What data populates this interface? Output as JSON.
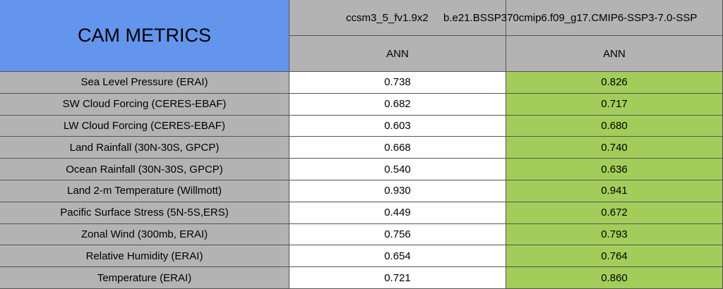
{
  "table": {
    "title": "CAM METRICS",
    "columns": [
      "ccsm3_5_fv1.9x2",
      "b.e21.BSSP370cmip6.f09_g17.CMIP6-SSP3-7.0-SSP"
    ],
    "subheaders": [
      "ANN",
      "ANN"
    ],
    "rows": [
      {
        "label": "Sea Level Pressure (ERAI)",
        "values": [
          "0.738",
          "0.826"
        ]
      },
      {
        "label": "SW Cloud Forcing (CERES-EBAF)",
        "values": [
          "0.682",
          "0.717"
        ]
      },
      {
        "label": "LW Cloud Forcing (CERES-EBAF)",
        "values": [
          "0.603",
          "0.680"
        ]
      },
      {
        "label": "Land Rainfall (30N-30S, GPCP)",
        "values": [
          "0.668",
          "0.740"
        ]
      },
      {
        "label": "Ocean Rainfall (30N-30S, GPCP)",
        "values": [
          "0.540",
          "0.636"
        ]
      },
      {
        "label": "Land 2-m Temperature (Willmott)",
        "values": [
          "0.930",
          "0.941"
        ]
      },
      {
        "label": "Pacific Surface Stress (5N-5S,ERS)",
        "values": [
          "0.449",
          "0.672"
        ]
      },
      {
        "label": "Zonal Wind (300mb, ERAI)",
        "values": [
          "0.756",
          "0.793"
        ]
      },
      {
        "label": "Relative Humidity (ERAI)",
        "values": [
          "0.654",
          "0.764"
        ]
      },
      {
        "label": "Temperature (ERAI)",
        "values": [
          "0.721",
          "0.860"
        ]
      }
    ]
  }
}
